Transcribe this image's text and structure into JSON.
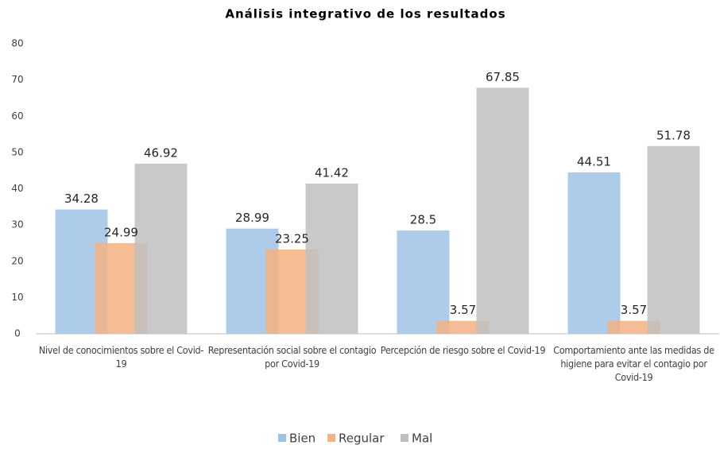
{
  "chart_data": {
    "type": "bar",
    "title": "Análisis integrativo de los resultados",
    "categories": [
      "Nivel de conocimientos sobre el Covid-19",
      "Representación social sobre el contagio por Covid-19",
      "Percepción de riesgo sobre el Covid-19",
      "Comportamiento ante las medidas de higiene para evitar el contagio por Covid-19"
    ],
    "series": [
      {
        "name": "Bien",
        "color": "#9dc3e6",
        "values": [
          34.28,
          28.99,
          28.5,
          44.51
        ]
      },
      {
        "name": "Regular",
        "color": "#f4b183",
        "values": [
          24.99,
          23.25,
          3.57,
          3.57
        ]
      },
      {
        "name": "Mal",
        "color": "#bfbfbf",
        "values": [
          46.92,
          41.42,
          67.85,
          51.78
        ]
      }
    ],
    "ylim": [
      0,
      80
    ],
    "yticks": [
      0,
      10,
      20,
      30,
      40,
      50,
      60,
      70,
      80
    ],
    "grid": false,
    "legend": "bottom"
  }
}
